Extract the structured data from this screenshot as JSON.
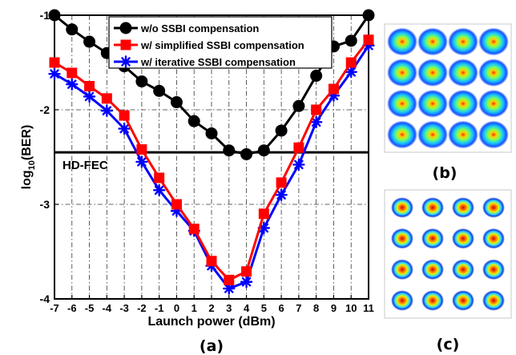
{
  "chart_data": {
    "type": "line",
    "xlabel": "Launch power (dBm)",
    "ylabel_base": "log",
    "ylabel_sub": "10",
    "ylabel_rest": "(BER)",
    "xlim": [
      -7,
      11
    ],
    "ylim": [
      -4,
      -1
    ],
    "xticks": [
      "-7",
      "-6",
      "-5",
      "-4",
      "-3",
      "-2",
      "-1",
      "0",
      "1",
      "2",
      "3",
      "4",
      "5",
      "6",
      "7",
      "8",
      "9",
      "10",
      "11"
    ],
    "yticks": [
      "-1",
      "-2",
      "-3",
      "-4"
    ],
    "grid": true,
    "legend_position": "top-right",
    "threshold": {
      "label": "HD-FEC",
      "value": -2.45
    },
    "series": [
      {
        "name": "w/o SSBI compensation",
        "color": "#000000",
        "marker": "circle",
        "x": [
          -7,
          -6,
          -5,
          -4,
          -3,
          -2,
          -1,
          0,
          1,
          2,
          3,
          4,
          5,
          6,
          7,
          8,
          9,
          10,
          11
        ],
        "y": [
          -1.0,
          -1.15,
          -1.28,
          -1.4,
          -1.54,
          -1.7,
          -1.8,
          -1.92,
          -2.12,
          -2.25,
          -2.43,
          -2.47,
          -2.43,
          -2.22,
          -1.96,
          -1.64,
          -1.33,
          -1.27,
          -1.0
        ]
      },
      {
        "name": "w/ simplified SSBI compensation",
        "color": "#ff0000",
        "marker": "square",
        "x": [
          -7,
          -6,
          -5,
          -4,
          -3,
          -2,
          -1,
          0,
          1,
          2,
          3,
          4,
          5,
          6,
          7,
          8,
          9,
          10,
          11
        ],
        "y": [
          -1.5,
          -1.61,
          -1.75,
          -1.88,
          -2.06,
          -2.42,
          -2.72,
          -3.0,
          -3.26,
          -3.6,
          -3.8,
          -3.71,
          -3.1,
          -2.77,
          -2.4,
          -2.0,
          -1.78,
          -1.5,
          -1.26
        ]
      },
      {
        "name": "w/ iterative SSBI compensation",
        "color": "#0000ff",
        "marker": "asterisk",
        "x": [
          -7,
          -6,
          -5,
          -4,
          -3,
          -2,
          -1,
          0,
          1,
          2,
          3,
          4,
          5,
          6,
          7,
          8,
          9,
          10,
          11
        ],
        "y": [
          -1.62,
          -1.73,
          -1.86,
          -2.01,
          -2.2,
          -2.55,
          -2.85,
          -3.07,
          -3.28,
          -3.65,
          -3.89,
          -3.82,
          -3.25,
          -2.9,
          -2.58,
          -2.13,
          -1.85,
          -1.6,
          -1.32
        ]
      }
    ]
  },
  "panels": {
    "a_label": "(a)",
    "b_label": "(b)",
    "c_label": "(c)",
    "b_grid": "4x4",
    "c_grid": "4x4"
  }
}
